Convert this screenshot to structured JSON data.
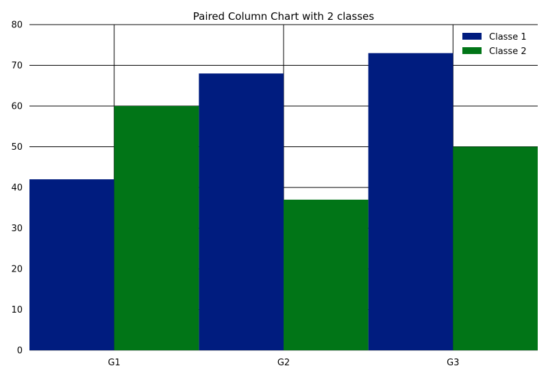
{
  "chart_data": {
    "type": "bar",
    "title": "Paired Column Chart with 2 classes",
    "xlabel": "",
    "ylabel": "",
    "categories": [
      "G1",
      "G2",
      "G3"
    ],
    "series": [
      {
        "name": "Classe 1",
        "values": [
          42,
          68,
          73
        ],
        "color": "#001c7f"
      },
      {
        "name": "Classe 2",
        "values": [
          60,
          37,
          50
        ],
        "color": "#017517"
      }
    ],
    "ylim": [
      0,
      80
    ],
    "yticks": [
      0,
      10,
      20,
      30,
      40,
      50,
      60,
      70,
      80
    ],
    "grid": true,
    "legend_position": "top-right"
  }
}
